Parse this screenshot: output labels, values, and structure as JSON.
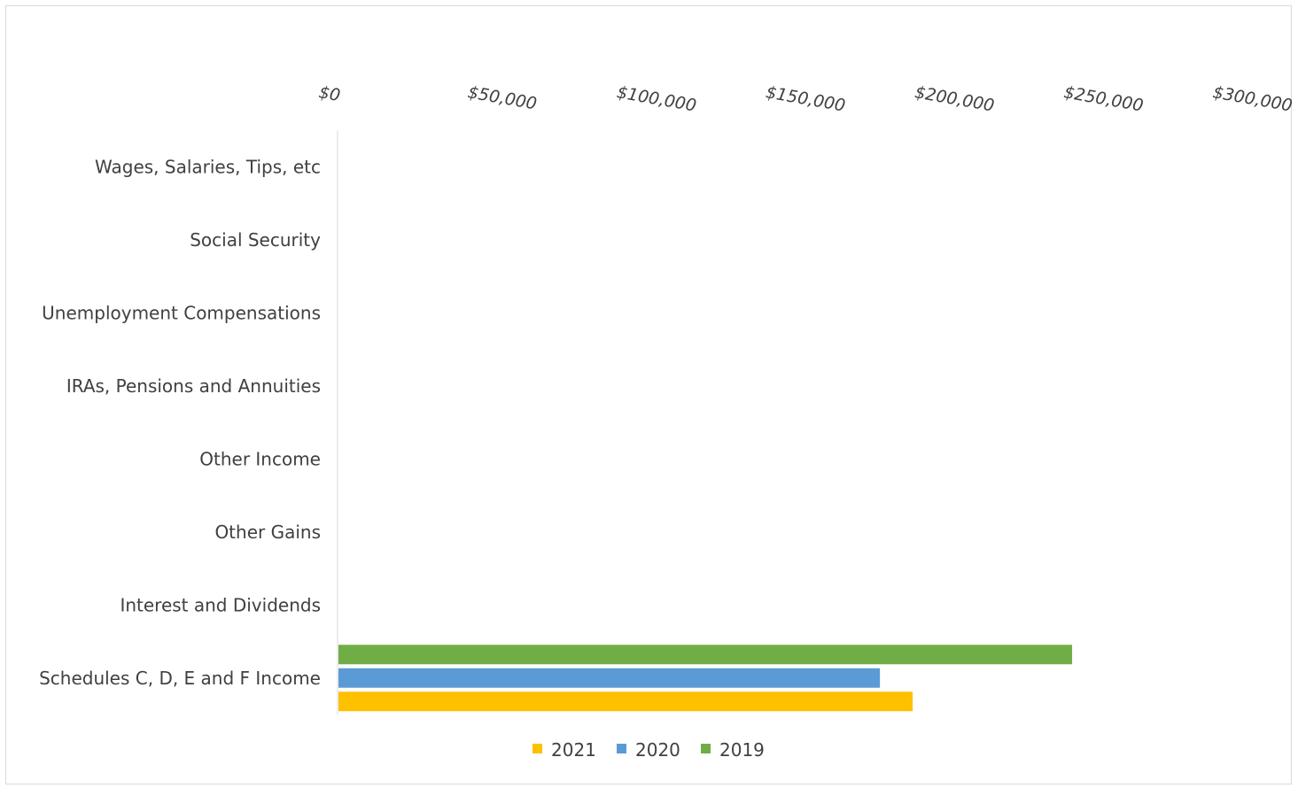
{
  "chart_data": {
    "type": "bar",
    "orientation": "horizontal",
    "x_axis_position": "top",
    "title": "",
    "xlabel": "",
    "ylabel": "",
    "xlim": [
      0,
      300000
    ],
    "xticks": [
      0,
      50000,
      100000,
      150000,
      200000,
      250000,
      300000
    ],
    "xtick_labels": [
      "$0",
      "$50,000",
      "$100,000",
      "$150,000",
      "$200,000",
      "$250,000",
      "$300,000"
    ],
    "categories": [
      "Wages, Salaries, Tips, etc",
      "Social Security",
      "Unemployment Compensations",
      "IRAs, Pensions and Annuities",
      "Other Income",
      "Other Gains",
      "Interest and Dividends",
      "Schedules C, D, E and F Income"
    ],
    "series": [
      {
        "name": "2021",
        "color": "#FFC000",
        "values": [
          0,
          0,
          0,
          0,
          0,
          0,
          0,
          193000
        ]
      },
      {
        "name": "2020",
        "color": "#5B9BD5",
        "values": [
          0,
          0,
          0,
          0,
          0,
          0,
          0,
          182000
        ]
      },
      {
        "name": "2019",
        "color": "#70AD47",
        "values": [
          0,
          0,
          0,
          0,
          0,
          0,
          0,
          246500
        ]
      }
    ],
    "grid": false,
    "legend_position": "bottom"
  }
}
